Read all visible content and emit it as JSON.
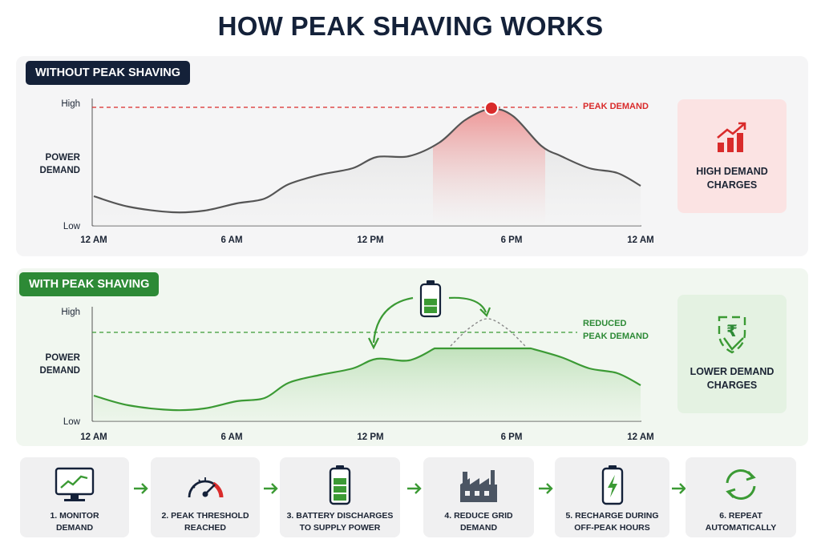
{
  "title": "HOW PEAK SHAVING WORKS",
  "colors": {
    "navy": "#142139",
    "red": "#d92b2b",
    "green": "#2d8a36",
    "gray_line": "#555555"
  },
  "without": {
    "tag": "WITHOUT PEAK SHAVING",
    "ylabel_line1": "POWER",
    "ylabel_line2": "DEMAND",
    "y_high": "High",
    "y_low": "Low",
    "x_ticks": [
      "12 AM",
      "6 AM",
      "12 PM",
      "6 PM",
      "12 AM"
    ],
    "peak_label": "PEAK DEMAND",
    "card": {
      "line1": "HIGH DEMAND",
      "line2": "CHARGES",
      "icon": "bar-chart-up-icon"
    }
  },
  "with": {
    "tag": "WITH PEAK SHAVING",
    "ylabel_line1": "POWER",
    "ylabel_line2": "DEMAND",
    "y_high": "High",
    "y_low": "Low",
    "x_ticks": [
      "12 AM",
      "6 AM",
      "12 PM",
      "6 PM",
      "12 AM"
    ],
    "threshold_label_line1": "REDUCED",
    "threshold_label_line2": "PEAK DEMAND",
    "card": {
      "line1": "LOWER DEMAND",
      "line2": "CHARGES",
      "icon": "rupee-shield-icon"
    }
  },
  "steps": [
    {
      "line1": "1. MONITOR",
      "line2": "DEMAND",
      "icon": "monitor-icon"
    },
    {
      "line1": "2. PEAK THRESHOLD",
      "line2": "REACHED",
      "icon": "gauge-icon"
    },
    {
      "line1": "3. BATTERY DISCHARGES",
      "line2": "TO SUPPLY POWER",
      "icon": "battery-icon"
    },
    {
      "line1": "4. REDUCE GRID",
      "line2": "DEMAND",
      "icon": "factory-icon"
    },
    {
      "line1": "5. RECHARGE DURING",
      "line2": "OFF-PEAK HOURS",
      "icon": "charging-battery-icon"
    },
    {
      "line1": "6. REPEAT",
      "line2": "AUTOMATICALLY",
      "icon": "repeat-icon"
    }
  ]
}
